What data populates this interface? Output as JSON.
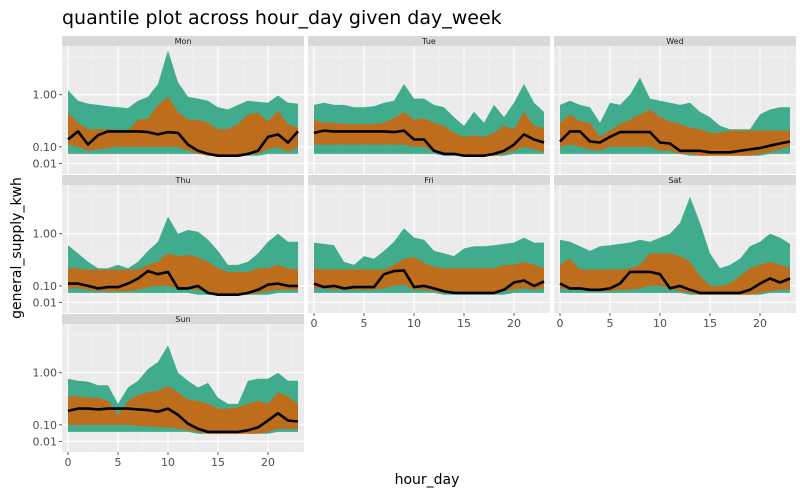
{
  "chart_data": {
    "type": "area",
    "title": "quantile plot across hour_day given day_week",
    "xlabel": "hour_day",
    "ylabel": "general_supply_kwh",
    "y_scale": "sqrt",
    "xlim": [
      0,
      23
    ],
    "ylim": [
      0,
      2.6
    ],
    "x_ticks": [
      0,
      5,
      10,
      15,
      20
    ],
    "y_ticks": [
      0.01,
      0.1,
      1.0
    ],
    "y_tick_labels": [
      "0.01",
      "0.10",
      "1.00"
    ],
    "colors": {
      "outer_band": "#1b9e77",
      "inner_band": "#d95f02",
      "median": "#000000",
      "panel_bg": "#ebebeb",
      "strip_bg": "#d9d9d9"
    },
    "x": [
      0,
      1,
      2,
      3,
      4,
      5,
      6,
      7,
      8,
      9,
      10,
      11,
      12,
      13,
      14,
      15,
      16,
      17,
      18,
      19,
      20,
      21,
      22,
      23
    ],
    "panels": [
      {
        "name": "Mon",
        "p10": [
          0.05,
          0.05,
          0.05,
          0.05,
          0.05,
          0.05,
          0.05,
          0.05,
          0.05,
          0.05,
          0.05,
          0.05,
          0.05,
          0.05,
          0.05,
          0.04,
          0.04,
          0.04,
          0.04,
          0.04,
          0.05,
          0.05,
          0.05,
          0.05
        ],
        "p25": [
          0.12,
          0.1,
          0.07,
          0.08,
          0.09,
          0.1,
          0.1,
          0.1,
          0.1,
          0.1,
          0.1,
          0.1,
          0.07,
          0.05,
          0.04,
          0.04,
          0.04,
          0.04,
          0.05,
          0.05,
          0.08,
          0.1,
          0.06,
          0.1
        ],
        "p50": [
          0.17,
          0.27,
          0.12,
          0.22,
          0.27,
          0.27,
          0.27,
          0.27,
          0.26,
          0.23,
          0.26,
          0.25,
          0.12,
          0.07,
          0.05,
          0.04,
          0.04,
          0.04,
          0.05,
          0.07,
          0.2,
          0.23,
          0.14,
          0.27
        ],
        "p75": [
          0.58,
          0.4,
          0.3,
          0.3,
          0.3,
          0.29,
          0.28,
          0.45,
          0.47,
          0.75,
          0.95,
          0.6,
          0.45,
          0.45,
          0.4,
          0.3,
          0.3,
          0.38,
          0.55,
          0.58,
          0.42,
          0.62,
          0.38,
          0.32
        ],
        "p90": [
          1.12,
          0.85,
          0.78,
          0.75,
          0.72,
          0.7,
          0.68,
          0.85,
          0.95,
          1.3,
          2.5,
          1.35,
          0.95,
          0.9,
          0.85,
          0.7,
          0.65,
          0.75,
          0.85,
          0.82,
          0.8,
          0.98,
          0.8,
          0.78
        ]
      },
      {
        "name": "Tue",
        "p10": [
          0.05,
          0.05,
          0.05,
          0.05,
          0.05,
          0.05,
          0.05,
          0.05,
          0.05,
          0.05,
          0.05,
          0.05,
          0.05,
          0.04,
          0.04,
          0.04,
          0.04,
          0.04,
          0.04,
          0.04,
          0.05,
          0.05,
          0.05,
          0.05
        ],
        "p25": [
          0.12,
          0.12,
          0.12,
          0.12,
          0.12,
          0.12,
          0.12,
          0.12,
          0.12,
          0.12,
          0.1,
          0.1,
          0.06,
          0.05,
          0.05,
          0.04,
          0.04,
          0.04,
          0.04,
          0.05,
          0.07,
          0.1,
          0.08,
          0.06
        ],
        "p50": [
          0.25,
          0.28,
          0.27,
          0.27,
          0.27,
          0.27,
          0.27,
          0.27,
          0.26,
          0.28,
          0.17,
          0.17,
          0.07,
          0.05,
          0.05,
          0.04,
          0.04,
          0.04,
          0.05,
          0.07,
          0.12,
          0.23,
          0.17,
          0.14
        ],
        "p75": [
          0.45,
          0.4,
          0.4,
          0.38,
          0.38,
          0.38,
          0.38,
          0.4,
          0.48,
          0.6,
          0.45,
          0.48,
          0.4,
          0.35,
          0.25,
          0.2,
          0.22,
          0.2,
          0.25,
          0.35,
          0.3,
          0.6,
          0.35,
          0.32
        ],
        "p90": [
          0.75,
          0.8,
          0.75,
          0.75,
          0.7,
          0.7,
          0.72,
          0.8,
          0.85,
          1.3,
          0.9,
          0.9,
          0.75,
          0.7,
          0.5,
          0.35,
          0.6,
          0.4,
          0.75,
          0.5,
          0.8,
          1.3,
          0.8,
          0.6
        ]
      },
      {
        "name": "Wed",
        "p10": [
          0.05,
          0.05,
          0.05,
          0.05,
          0.05,
          0.05,
          0.05,
          0.05,
          0.05,
          0.05,
          0.05,
          0.05,
          0.05,
          0.04,
          0.04,
          0.04,
          0.04,
          0.04,
          0.04,
          0.04,
          0.04,
          0.05,
          0.05,
          0.05
        ],
        "p25": [
          0.1,
          0.12,
          0.1,
          0.08,
          0.07,
          0.1,
          0.1,
          0.1,
          0.1,
          0.1,
          0.07,
          0.07,
          0.05,
          0.05,
          0.04,
          0.04,
          0.04,
          0.04,
          0.04,
          0.04,
          0.05,
          0.06,
          0.08,
          0.1
        ],
        "p50": [
          0.15,
          0.27,
          0.27,
          0.15,
          0.14,
          0.2,
          0.26,
          0.26,
          0.26,
          0.26,
          0.14,
          0.13,
          0.07,
          0.07,
          0.07,
          0.06,
          0.06,
          0.06,
          0.07,
          0.08,
          0.09,
          0.11,
          0.13,
          0.15
        ],
        "p75": [
          0.4,
          0.55,
          0.42,
          0.4,
          0.2,
          0.28,
          0.38,
          0.45,
          0.55,
          0.65,
          0.5,
          0.42,
          0.38,
          0.32,
          0.3,
          0.25,
          0.25,
          0.28,
          0.28,
          0.28,
          0.28,
          0.28,
          0.28,
          0.28
        ],
        "p90": [
          0.75,
          0.85,
          0.75,
          0.7,
          0.4,
          0.8,
          0.75,
          1.0,
          1.5,
          0.9,
          0.85,
          0.8,
          0.75,
          0.8,
          0.6,
          0.5,
          0.35,
          0.3,
          0.3,
          0.3,
          0.55,
          0.65,
          0.7,
          0.7
        ]
      },
      {
        "name": "Thu",
        "p10": [
          0.05,
          0.05,
          0.05,
          0.05,
          0.05,
          0.05,
          0.05,
          0.05,
          0.05,
          0.05,
          0.05,
          0.05,
          0.05,
          0.04,
          0.04,
          0.04,
          0.04,
          0.04,
          0.04,
          0.04,
          0.04,
          0.05,
          0.05,
          0.05
        ],
        "p25": [
          0.08,
          0.08,
          0.07,
          0.06,
          0.06,
          0.06,
          0.06,
          0.07,
          0.09,
          0.1,
          0.1,
          0.08,
          0.07,
          0.07,
          0.05,
          0.04,
          0.04,
          0.04,
          0.04,
          0.05,
          0.06,
          0.07,
          0.07,
          0.07
        ],
        "p50": [
          0.12,
          0.12,
          0.1,
          0.08,
          0.09,
          0.09,
          0.12,
          0.17,
          0.26,
          0.22,
          0.25,
          0.08,
          0.08,
          0.1,
          0.05,
          0.04,
          0.04,
          0.04,
          0.05,
          0.07,
          0.11,
          0.12,
          0.1,
          0.1
        ],
        "p75": [
          0.3,
          0.3,
          0.28,
          0.28,
          0.28,
          0.28,
          0.28,
          0.28,
          0.35,
          0.4,
          0.55,
          0.5,
          0.52,
          0.48,
          0.4,
          0.3,
          0.25,
          0.25,
          0.25,
          0.3,
          0.3,
          0.35,
          0.3,
          0.28
        ],
        "p90": [
          0.72,
          0.55,
          0.4,
          0.3,
          0.3,
          0.35,
          0.3,
          0.4,
          0.6,
          0.8,
          1.5,
          1.0,
          1.1,
          1.05,
          0.85,
          0.6,
          0.35,
          0.35,
          0.4,
          0.55,
          0.8,
          1.0,
          0.8,
          0.8
        ]
      },
      {
        "name": "Fri",
        "p10": [
          0.05,
          0.05,
          0.05,
          0.05,
          0.05,
          0.05,
          0.05,
          0.05,
          0.05,
          0.05,
          0.05,
          0.05,
          0.05,
          0.04,
          0.04,
          0.04,
          0.04,
          0.04,
          0.04,
          0.04,
          0.05,
          0.05,
          0.05,
          0.05
        ],
        "p25": [
          0.08,
          0.08,
          0.07,
          0.07,
          0.07,
          0.07,
          0.07,
          0.08,
          0.1,
          0.11,
          0.07,
          0.07,
          0.06,
          0.05,
          0.05,
          0.05,
          0.05,
          0.05,
          0.05,
          0.06,
          0.07,
          0.08,
          0.07,
          0.08
        ],
        "p50": [
          0.12,
          0.09,
          0.1,
          0.08,
          0.09,
          0.09,
          0.09,
          0.22,
          0.26,
          0.27,
          0.09,
          0.1,
          0.08,
          0.06,
          0.05,
          0.05,
          0.05,
          0.05,
          0.05,
          0.07,
          0.13,
          0.15,
          0.1,
          0.14
        ],
        "p75": [
          0.3,
          0.28,
          0.28,
          0.28,
          0.28,
          0.28,
          0.28,
          0.28,
          0.35,
          0.45,
          0.48,
          0.38,
          0.32,
          0.3,
          0.3,
          0.3,
          0.3,
          0.3,
          0.3,
          0.35,
          0.35,
          0.4,
          0.35,
          0.3
        ],
        "p90": [
          0.78,
          0.75,
          0.72,
          0.4,
          0.35,
          0.5,
          0.45,
          0.6,
          0.8,
          1.15,
          0.9,
          0.85,
          0.6,
          0.55,
          0.5,
          0.65,
          0.7,
          0.7,
          0.72,
          0.75,
          0.78,
          0.9,
          0.78,
          0.78
        ]
      },
      {
        "name": "Sat",
        "p10": [
          0.05,
          0.05,
          0.05,
          0.05,
          0.05,
          0.05,
          0.05,
          0.05,
          0.05,
          0.05,
          0.05,
          0.05,
          0.05,
          0.04,
          0.04,
          0.04,
          0.04,
          0.04,
          0.04,
          0.04,
          0.04,
          0.05,
          0.05,
          0.05
        ],
        "p25": [
          0.08,
          0.07,
          0.07,
          0.06,
          0.06,
          0.06,
          0.07,
          0.07,
          0.08,
          0.1,
          0.1,
          0.08,
          0.06,
          0.05,
          0.04,
          0.04,
          0.04,
          0.04,
          0.04,
          0.04,
          0.05,
          0.06,
          0.07,
          0.07
        ],
        "p50": [
          0.12,
          0.08,
          0.08,
          0.07,
          0.07,
          0.08,
          0.12,
          0.25,
          0.25,
          0.25,
          0.22,
          0.08,
          0.1,
          0.07,
          0.05,
          0.05,
          0.05,
          0.05,
          0.05,
          0.07,
          0.12,
          0.17,
          0.13,
          0.17
        ],
        "p75": [
          0.35,
          0.45,
          0.28,
          0.28,
          0.28,
          0.28,
          0.28,
          0.3,
          0.35,
          0.55,
          0.55,
          0.55,
          0.5,
          0.4,
          0.2,
          0.1,
          0.1,
          0.12,
          0.2,
          0.3,
          0.35,
          0.4,
          0.35,
          0.3
        ],
        "p90": [
          0.85,
          0.8,
          0.7,
          0.6,
          0.7,
          0.72,
          0.75,
          0.78,
          0.85,
          0.8,
          0.9,
          1.0,
          1.3,
          2.2,
          1.3,
          0.55,
          0.3,
          0.35,
          0.45,
          0.7,
          0.8,
          1.0,
          0.9,
          0.75
        ]
      },
      {
        "name": "Sun",
        "p10": [
          0.05,
          0.05,
          0.05,
          0.05,
          0.05,
          0.05,
          0.05,
          0.05,
          0.05,
          0.05,
          0.05,
          0.05,
          0.05,
          0.04,
          0.04,
          0.04,
          0.04,
          0.04,
          0.04,
          0.04,
          0.04,
          0.05,
          0.05,
          0.05
        ],
        "p25": [
          0.1,
          0.1,
          0.1,
          0.1,
          0.1,
          0.1,
          0.1,
          0.09,
          0.09,
          0.08,
          0.08,
          0.07,
          0.06,
          0.05,
          0.04,
          0.04,
          0.04,
          0.04,
          0.04,
          0.04,
          0.05,
          0.07,
          0.07,
          0.07
        ],
        "p50": [
          0.25,
          0.28,
          0.28,
          0.27,
          0.28,
          0.28,
          0.28,
          0.27,
          0.26,
          0.24,
          0.28,
          0.2,
          0.11,
          0.07,
          0.05,
          0.05,
          0.05,
          0.05,
          0.06,
          0.08,
          0.14,
          0.22,
          0.14,
          0.13
        ],
        "p75": [
          0.48,
          0.48,
          0.45,
          0.45,
          0.4,
          0.2,
          0.4,
          0.5,
          0.55,
          0.58,
          0.68,
          0.55,
          0.42,
          0.4,
          0.35,
          0.28,
          0.28,
          0.3,
          0.35,
          0.4,
          0.35,
          0.55,
          0.48,
          0.35
        ],
        "p90": [
          0.85,
          0.8,
          0.78,
          0.7,
          0.7,
          0.35,
          0.65,
          0.8,
          1.1,
          1.3,
          1.85,
          1.0,
          0.8,
          0.65,
          0.75,
          0.45,
          0.35,
          0.35,
          0.8,
          0.85,
          0.85,
          1.0,
          0.8,
          0.8
        ]
      }
    ]
  }
}
